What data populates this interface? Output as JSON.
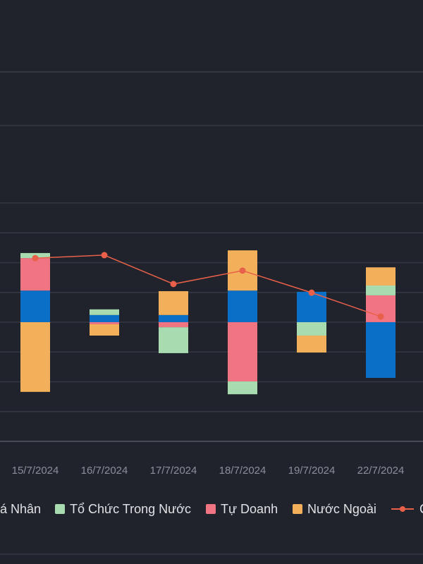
{
  "chart_data": {
    "type": "bar",
    "categories": [
      "15/7/2024",
      "16/7/2024",
      "17/7/2024",
      "18/7/2024",
      "19/7/2024",
      "22/7/2024"
    ],
    "series": [
      {
        "name": "á Nhân",
        "color": "#0a6fc6",
        "values": [
          1.06,
          0.24,
          0.24,
          1.06,
          1.02,
          -1.87
        ]
      },
      {
        "name": "Tổ Chức Trong Nước",
        "color": "#a8dcb0",
        "values": [
          0.17,
          0.19,
          -0.87,
          -0.43,
          -0.45,
          0.33
        ]
      },
      {
        "name": "Tự Doanh",
        "color": "#f07482",
        "values": [
          1.09,
          -0.07,
          -0.17,
          -1.99,
          0,
          0.9
        ]
      },
      {
        "name": "Nước Ngoài",
        "color": "#f2b05a",
        "values": [
          -2.34,
          -0.38,
          0.8,
          1.35,
          -0.57,
          0.61
        ]
      },
      {
        "name": "C",
        "type": "line",
        "color": "#e8604a",
        "values": [
          2.15,
          2.25,
          1.28,
          1.73,
          0.99,
          0.19
        ]
      }
    ],
    "ylim": [
      -4,
      8.4
    ],
    "yticks": [
      -3,
      -2,
      -1,
      0,
      1,
      2,
      3,
      4,
      6.6
    ],
    "grid": true,
    "legend": "bottom"
  }
}
